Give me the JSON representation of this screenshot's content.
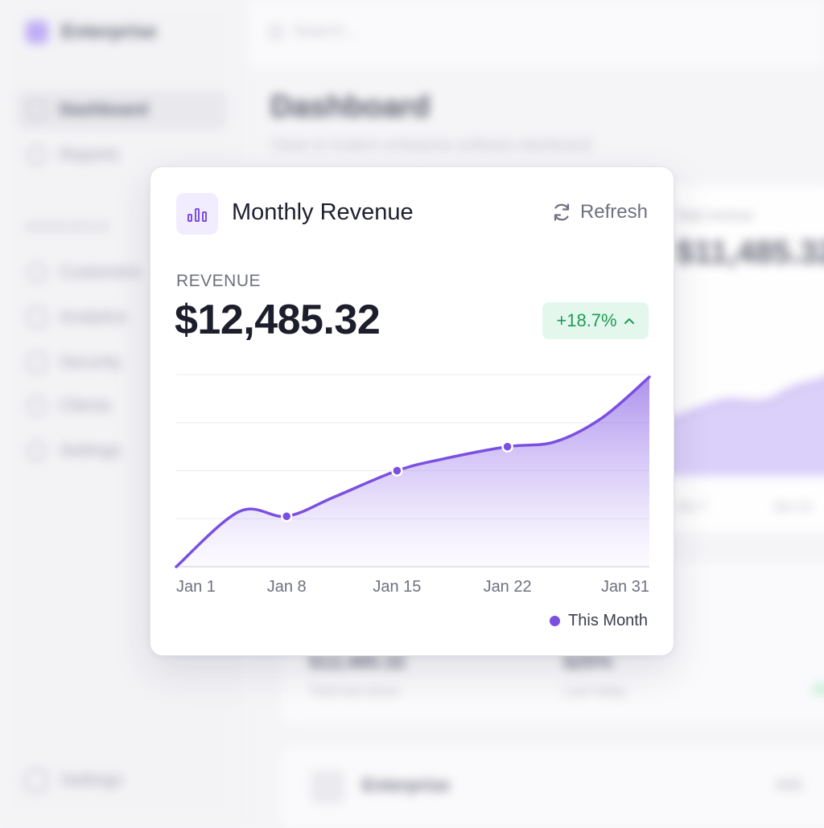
{
  "app": {
    "brand": "Enterprise",
    "search_placeholder": "Search...",
    "page_title": "Dashboard",
    "page_subtitle": "Clean & modern enterprise software dashboard",
    "nav": [
      {
        "label": "Dashboard",
        "active": true
      },
      {
        "label": "Reports",
        "active": false
      }
    ],
    "nav_heading": "WORKSPACE",
    "nav_secondary": [
      {
        "label": "Customers"
      },
      {
        "label": "Analytics"
      },
      {
        "label": "Security"
      },
      {
        "label": "Clients"
      },
      {
        "label": "Settings"
      }
    ],
    "footer_settings": "Settings",
    "bg_card": {
      "label": "Total revenue",
      "value": "$11,485.32",
      "ticks": [
        "Jan 7",
        "Jan 14"
      ]
    },
    "bg_stats": [
      {
        "value": "$12,485.32",
        "caption": "Total last down"
      },
      {
        "value": "$25%",
        "caption": "Last today"
      }
    ],
    "bg_bottom": {
      "title": "Enterprise",
      "right": "Add"
    }
  },
  "card": {
    "title": "Monthly Revenue",
    "icon": "bar-chart-icon",
    "refresh_label": "Refresh",
    "metric_label": "REVENUE",
    "metric_value": "$12,485.32",
    "change": "+18.7%",
    "change_direction": "up",
    "legend_label": "This Month",
    "colors": {
      "accent": "#7b4fe0",
      "positive_bg": "#e4f7ec",
      "positive_text": "#1f9a58"
    }
  },
  "chart_data": {
    "type": "area",
    "title": "",
    "xlabel": "",
    "ylabel": "",
    "x": [
      1,
      5,
      8,
      11,
      15,
      18,
      22,
      25,
      28,
      31
    ],
    "x_ticks": [
      {
        "x": 1,
        "label": "Jan 1"
      },
      {
        "x": 8,
        "label": "Jan 8"
      },
      {
        "x": 15,
        "label": "Jan 15"
      },
      {
        "x": 22,
        "label": "Jan 22"
      },
      {
        "x": 31,
        "label": "Jan 31"
      }
    ],
    "series": [
      {
        "name": "This Month",
        "values": [
          0,
          1.15,
          1.05,
          1.45,
          2.0,
          2.25,
          2.5,
          2.6,
          3.1,
          3.95
        ],
        "markers_at": [
          8,
          15,
          22
        ]
      }
    ],
    "ylim": [
      0,
      4
    ],
    "grid": true,
    "legend": "bottom-right"
  }
}
